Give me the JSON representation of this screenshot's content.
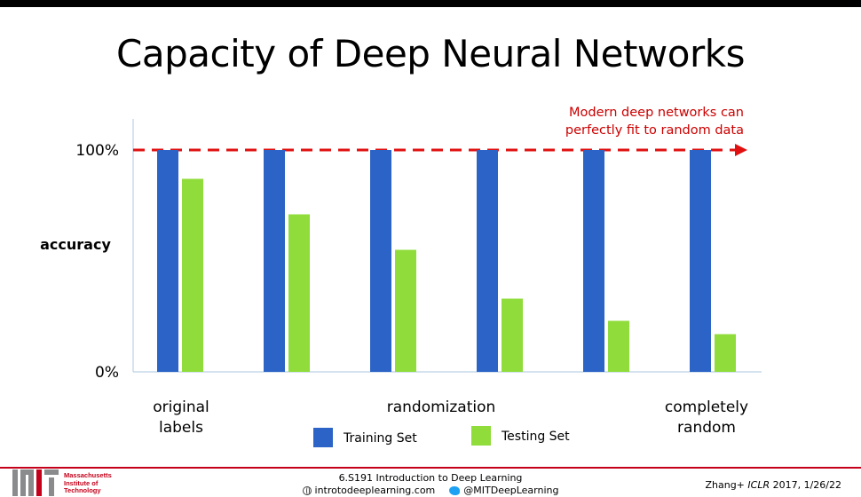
{
  "slide": {
    "title": "Capacity of Deep Neural Networks"
  },
  "chart_data": {
    "type": "bar",
    "categories": [
      "",
      "",
      "",
      "",
      "",
      ""
    ],
    "series": [
      {
        "name": "Training Set",
        "color": "#2b63c6",
        "values": [
          100,
          100,
          100,
          100,
          100,
          100
        ]
      },
      {
        "name": "Testing Set",
        "color": "#8fdc3a",
        "values": [
          87,
          71,
          55,
          33,
          23,
          17
        ]
      }
    ],
    "ylabel": "accuracy",
    "ylim": [
      0,
      100
    ],
    "yticks": [
      "0%",
      "100%"
    ],
    "x_group_labels": {
      "left": [
        "original",
        "labels"
      ],
      "middle": [
        "randomization"
      ],
      "right": [
        "completely",
        "random"
      ]
    },
    "reference_line": {
      "value": 100,
      "style": "dashed",
      "color": "#e01010"
    },
    "annotation": [
      "Modern deep networks can",
      "perfectly fit to random data"
    ],
    "legend_position": "bottom"
  },
  "footer": {
    "institution": [
      "Massachusetts",
      "Institute of",
      "Technology"
    ],
    "course": "6.S191 Introduction to Deep Learning",
    "website": "introtodeeplearning.com",
    "twitter": "@MITDeepLearning",
    "citation_prefix": "Zhang+ ",
    "citation_venue": "ICLR",
    "citation_suffix": " 2017, 1/26/22"
  }
}
